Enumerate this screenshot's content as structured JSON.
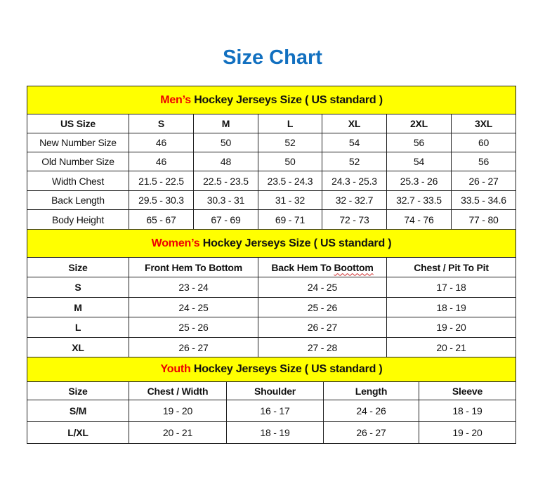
{
  "title": "Size Chart",
  "colors": {
    "title": "#1270c0",
    "banner_bg": "#ffff00",
    "banner_accent": "#ee0000"
  },
  "sections": [
    {
      "id": "men",
      "banner_accent": "Men’s",
      "banner_rest": " Hockey Jerseys Size ( US standard )",
      "headers": [
        "US Size",
        "S",
        "M",
        "L",
        "XL",
        "2XL",
        "3XL"
      ],
      "rows": [
        [
          "New Number Size",
          "46",
          "50",
          "52",
          "54",
          "56",
          "60"
        ],
        [
          "Old Number Size",
          "46",
          "48",
          "50",
          "52",
          "54",
          "56"
        ],
        [
          "Width Chest",
          "21.5 - 22.5",
          "22.5 - 23.5",
          "23.5 - 24.3",
          "24.3 - 25.3",
          "25.3 - 26",
          "26 - 27"
        ],
        [
          "Back Length",
          "29.5 - 30.3",
          "30.3 - 31",
          "31 - 32",
          "32 - 32.7",
          "32.7 - 33.5",
          "33.5 - 34.6"
        ],
        [
          "Body Height",
          "65 - 67",
          "67 - 69",
          "69 - 71",
          "72 - 73",
          "74 - 76",
          "77 - 80"
        ]
      ]
    },
    {
      "id": "women",
      "banner_accent": "Women’s",
      "banner_rest": " Hockey Jerseys Size ( US standard )",
      "headers": [
        "Size",
        "Front Hem To Bottom",
        "Back Hem To Boottom",
        "Chest / Pit To Pit"
      ],
      "rows": [
        [
          "S",
          "23 - 24",
          "24 - 25",
          "17 - 18"
        ],
        [
          "M",
          "24 - 25",
          "25 - 26",
          "18 - 19"
        ],
        [
          "L",
          "25 - 26",
          "26 - 27",
          "19 - 20"
        ],
        [
          "XL",
          "26 - 27",
          "27 - 28",
          "20 - 21"
        ]
      ]
    },
    {
      "id": "youth",
      "banner_accent": "Youth",
      "banner_rest": " Hockey Jerseys Size ( US standard )",
      "headers": [
        "Size",
        "Chest / Width",
        "Shoulder",
        "Length",
        "Sleeve"
      ],
      "rows": [
        [
          "S/M",
          "19 - 20",
          "16 - 17",
          "24 - 26",
          "18 - 19"
        ],
        [
          "L/XL",
          "20 - 21",
          "18 - 19",
          "26 - 27",
          "19 - 20"
        ]
      ]
    }
  ]
}
